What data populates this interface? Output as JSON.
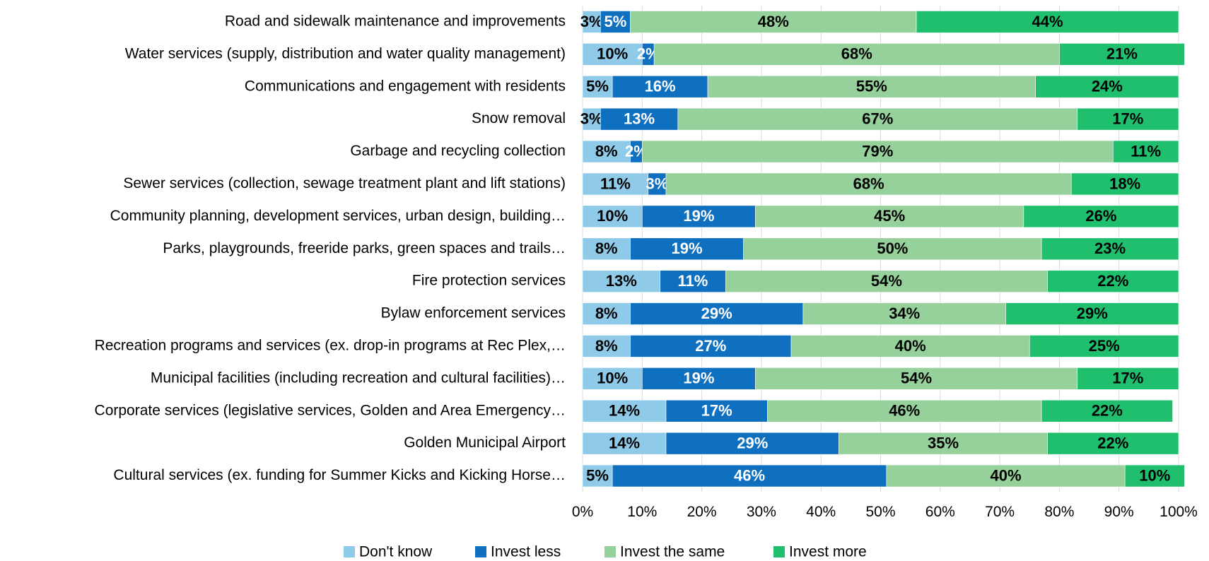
{
  "chart_data": {
    "type": "stacked_bar_horizontal",
    "categories": [
      "Road and sidewalk maintenance and improvements",
      "Water services (supply, distribution and water quality management)",
      "Communications and engagement with residents",
      "Snow removal",
      "Garbage and recycling collection",
      "Sewer services (collection, sewage treatment plant and lift stations)",
      "Community planning, development services, urban design, building…",
      "Parks, playgrounds, freeride parks, green spaces and trails…",
      "Fire protection services",
      "Bylaw enforcement services",
      "Recreation programs and services (ex. drop-in programs at Rec Plex,…",
      "Municipal facilities (including recreation and cultural facilities)…",
      "Corporate services (legislative services, Golden and Area Emergency…",
      "Golden Municipal Airport",
      "Cultural services (ex. funding for Summer Kicks and Kicking Horse…"
    ],
    "series": [
      {
        "name": "Don't know",
        "color": "#8fcbe9",
        "label_color": "#000000",
        "values": [
          3,
          10,
          5,
          3,
          8,
          11,
          10,
          8,
          13,
          8,
          8,
          10,
          14,
          14,
          5
        ],
        "value_labels": [
          "3%",
          "10%",
          "5%",
          "3%",
          "8%",
          "11%",
          "10%",
          "8%",
          "13%",
          "8%",
          "8%",
          "10%",
          "14%",
          "14%",
          "5%"
        ]
      },
      {
        "name": "Invest less",
        "color": "#0f70c0",
        "label_color": "#ffffff",
        "values": [
          5,
          2,
          16,
          13,
          2,
          3,
          19,
          19,
          11,
          29,
          27,
          19,
          17,
          29,
          46
        ],
        "value_labels": [
          "5%",
          "2%",
          "16%",
          "13%",
          "2%",
          "3%",
          "19%",
          "19%",
          "11%",
          "29%",
          "27%",
          "19%",
          "17%",
          "29%",
          "46%"
        ]
      },
      {
        "name": "Invest the same",
        "color": "#96d09a",
        "label_color": "#000000",
        "values": [
          48,
          68,
          55,
          67,
          79,
          68,
          45,
          50,
          54,
          34,
          40,
          54,
          46,
          35,
          40
        ],
        "value_labels": [
          "48%",
          "68%",
          "55%",
          "67%",
          "79%",
          "68%",
          "45%",
          "50%",
          "54%",
          "34%",
          "40%",
          "54%",
          "46%",
          "35%",
          "40%"
        ]
      },
      {
        "name": "Invest more",
        "color": "#1fbf6e",
        "label_color": "#000000",
        "values": [
          44,
          21,
          24,
          17,
          11,
          18,
          26,
          23,
          22,
          29,
          25,
          17,
          22,
          22,
          10
        ],
        "value_labels": [
          "44%",
          "21%",
          "24%",
          "17%",
          "11%",
          "18%",
          "26%",
          "23%",
          "22%",
          "29%",
          "25%",
          "17%",
          "22%",
          "22%",
          "10%"
        ]
      }
    ],
    "xlim": [
      0,
      100
    ],
    "xticks": [
      {
        "value": 0,
        "label": "0%"
      },
      {
        "value": 10,
        "label": "10%"
      },
      {
        "value": 20,
        "label": "20%"
      },
      {
        "value": 30,
        "label": "30%"
      },
      {
        "value": 40,
        "label": "40%"
      },
      {
        "value": 50,
        "label": "50%"
      },
      {
        "value": 60,
        "label": "60%"
      },
      {
        "value": 70,
        "label": "70%"
      },
      {
        "value": 80,
        "label": "80%"
      },
      {
        "value": 90,
        "label": "90%"
      },
      {
        "value": 100,
        "label": "100%"
      }
    ],
    "grid": true,
    "legend": "bottom"
  }
}
